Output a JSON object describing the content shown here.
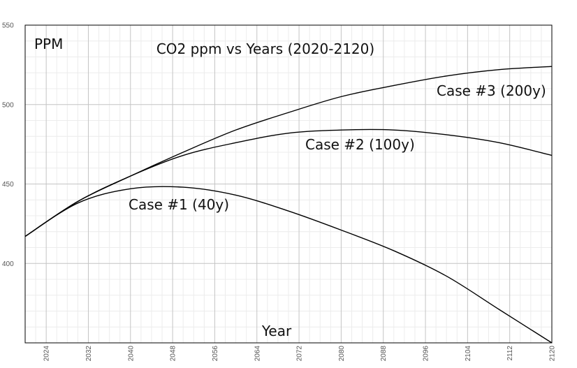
{
  "chart_data": {
    "type": "line",
    "title": "CO2 ppm vs Years (2020-2120)",
    "xlabel": "Year",
    "ylabel": "PPM",
    "xlim": [
      2020,
      2120
    ],
    "ylim": [
      350,
      550
    ],
    "x_ticks": [
      2024,
      2032,
      2040,
      2048,
      2056,
      2064,
      2072,
      2080,
      2088,
      2096,
      2104,
      2112,
      2120
    ],
    "y_ticks": [
      400,
      450,
      500,
      550
    ],
    "grid": true,
    "x": [
      2020,
      2030,
      2040,
      2050,
      2060,
      2070,
      2080,
      2090,
      2100,
      2110,
      2120
    ],
    "series": [
      {
        "name": "Case #1 (40y)",
        "values": [
          417,
          438,
          447,
          448,
          443,
          433,
          421,
          408,
          392,
          371,
          350
        ]
      },
      {
        "name": "Case #2 (100y)",
        "values": [
          417,
          439,
          455,
          468,
          476,
          482,
          484,
          484,
          481,
          476,
          468
        ]
      },
      {
        "name": "Case #3 (200y)",
        "values": [
          417,
          439,
          455,
          470,
          484,
          495,
          505,
          512,
          518,
          522,
          524
        ]
      }
    ]
  }
}
